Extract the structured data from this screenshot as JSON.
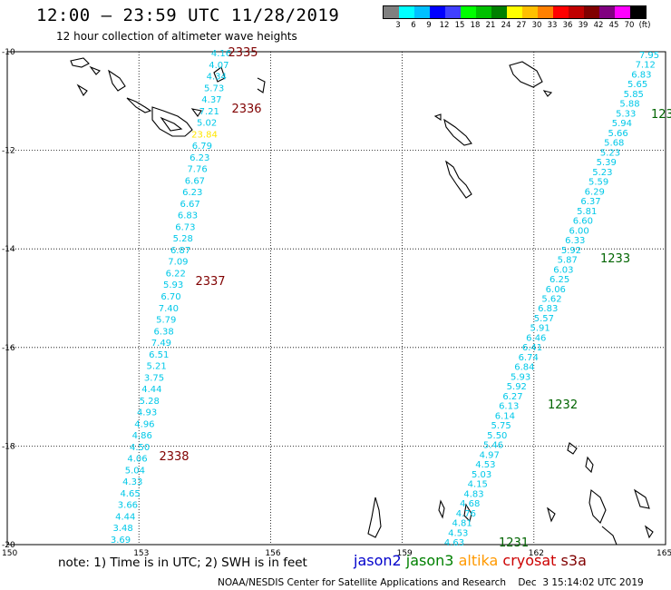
{
  "header": {
    "title": "12:00 – 23:59 UTC 11/28/2019",
    "subtitle": "12 hour collection of altimeter wave heights"
  },
  "legend": {
    "colors": [
      "#808080",
      "#00ffff",
      "#00c0ff",
      "#0000ff",
      "#4040ff",
      "#00ff00",
      "#00c000",
      "#008000",
      "#ffff00",
      "#ffc000",
      "#ff8000",
      "#ff0000",
      "#c00000",
      "#800000",
      "#800080",
      "#ff00ff",
      "#000000"
    ],
    "labels": [
      "3",
      "6",
      "9",
      "12",
      "15",
      "18",
      "21",
      "24",
      "27",
      "30",
      "33",
      "36",
      "39",
      "42",
      "45",
      "70",
      "(ft)"
    ]
  },
  "map": {
    "lon_ticks": [
      "150",
      "153",
      "156",
      "159",
      "162",
      "165"
    ],
    "lat_ticks": [
      "-10",
      "-12",
      "-14",
      "-16",
      "-18",
      "-20"
    ],
    "color_default": "#00c8e8",
    "color_high": "#ffe600",
    "color_pass_red": "#800000",
    "color_pass_green": "#006400",
    "track_left": [
      "4.16",
      "4.07",
      "4.34",
      "5.73",
      "4.37",
      "7.21",
      "5.02",
      "23.84",
      "6.79",
      "6.23",
      "7.76",
      "6.67",
      "6.23",
      "6.67",
      "6.83",
      "6.73",
      "5.28",
      "6.87",
      "7.09",
      "6.22",
      "5.93",
      "6.70",
      "7.40",
      "5.79",
      "6.38",
      "7.49",
      "6.51",
      "5.21",
      "3.75",
      "4.44",
      "5.28",
      "4.93",
      "4.96",
      "4.86",
      "4.50",
      "4.06",
      "5.04",
      "4.33",
      "4.65",
      "3.66",
      "4.44",
      "3.48",
      "3.69"
    ],
    "track_right": [
      "7.95",
      "7.12",
      "6.83",
      "5.65",
      "5.85",
      "5.88",
      "5.33",
      "5.94",
      "5.66",
      "5.68",
      "5.23",
      "5.39",
      "5.23",
      "5.59",
      "6.29",
      "6.37",
      "5.81",
      "6.60",
      "6.00",
      "6.33",
      "5.92",
      "5.87",
      "6.03",
      "6.25",
      "6.06",
      "5.62",
      "6.83",
      "5.57",
      "5.91",
      "6.46",
      "6.41",
      "6.74",
      "6.84",
      "5.93",
      "5.92",
      "6.27",
      "6.13",
      "6.14",
      "5.75",
      "5.50",
      "5.46",
      "4.97",
      "4.53",
      "5.03",
      "4.15",
      "4.83",
      "4.68",
      "4.76",
      "4.81",
      "4.53",
      "4.63"
    ],
    "high_value": "23.84",
    "passes_left": [
      "2335",
      "2336",
      "2337",
      "2338"
    ],
    "passes_right": [
      "123",
      "1233",
      "1232",
      "1231"
    ]
  },
  "footer": {
    "note": "note: 1) Time is in UTC; 2) SWH is in feet",
    "satellites": [
      {
        "name": "jason2",
        "color": "#0000cc"
      },
      {
        "name": "jason3",
        "color": "#008000"
      },
      {
        "name": "altika",
        "color": "#ff9900"
      },
      {
        "name": "cryosat",
        "color": "#cc0000"
      },
      {
        "name": "s3a",
        "color": "#800000"
      }
    ],
    "credit": "NOAA/NESDIS Center for Satellite Applications and Research    Dec  3 15:14:02 UTC 2019"
  }
}
